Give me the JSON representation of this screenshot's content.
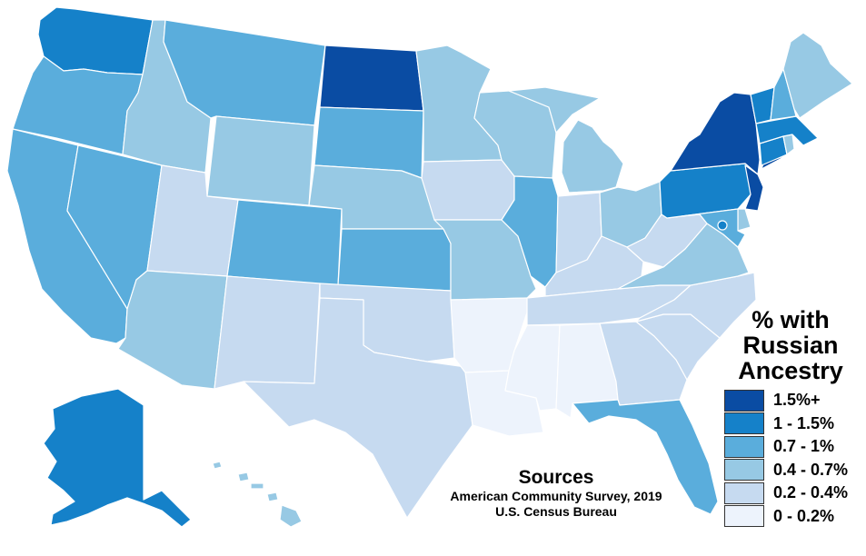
{
  "legend": {
    "title_lines": [
      "% with",
      "Russian",
      "Ancestry"
    ],
    "items": [
      {
        "label": "1.5%+",
        "color": "#0a4ca3"
      },
      {
        "label": "1 - 1.5%",
        "color": "#1581c9"
      },
      {
        "label": "0.7 - 1%",
        "color": "#5aaddc"
      },
      {
        "label": "0.4 - 0.7%",
        "color": "#97c9e4"
      },
      {
        "label": "0.2 - 0.4%",
        "color": "#c6daf0"
      },
      {
        "label": "0 - 0.2%",
        "color": "#edf3fc"
      }
    ]
  },
  "sources": {
    "title": "Sources",
    "lines": [
      "American Community Survey, 2019",
      "U.S. Census Bureau"
    ]
  },
  "states": [
    {
      "name": "WA",
      "category": "1 - 1.5%"
    },
    {
      "name": "OR",
      "category": "0.7 - 1%"
    },
    {
      "name": "CA",
      "category": "0.7 - 1%"
    },
    {
      "name": "NV",
      "category": "0.7 - 1%"
    },
    {
      "name": "ID",
      "category": "0.4 - 0.7%"
    },
    {
      "name": "MT",
      "category": "0.7 - 1%"
    },
    {
      "name": "WY",
      "category": "0.4 - 0.7%"
    },
    {
      "name": "UT",
      "category": "0.2 - 0.4%"
    },
    {
      "name": "AZ",
      "category": "0.4 - 0.7%"
    },
    {
      "name": "CO",
      "category": "0.7 - 1%"
    },
    {
      "name": "NM",
      "category": "0.2 - 0.4%"
    },
    {
      "name": "ND",
      "category": "1.5%+"
    },
    {
      "name": "SD",
      "category": "0.7 - 1%"
    },
    {
      "name": "NE",
      "category": "0.4 - 0.7%"
    },
    {
      "name": "KS",
      "category": "0.7 - 1%"
    },
    {
      "name": "OK",
      "category": "0.2 - 0.4%"
    },
    {
      "name": "TX",
      "category": "0.2 - 0.4%"
    },
    {
      "name": "MN",
      "category": "0.4 - 0.7%"
    },
    {
      "name": "IA",
      "category": "0.2 - 0.4%"
    },
    {
      "name": "MO",
      "category": "0.4 - 0.7%"
    },
    {
      "name": "AR",
      "category": "0 - 0.2%"
    },
    {
      "name": "LA",
      "category": "0 - 0.2%"
    },
    {
      "name": "WI",
      "category": "0.4 - 0.7%"
    },
    {
      "name": "IL",
      "category": "0.7 - 1%"
    },
    {
      "name": "MI",
      "category": "0.4 - 0.7%"
    },
    {
      "name": "IN",
      "category": "0.2 - 0.4%"
    },
    {
      "name": "OH",
      "category": "0.4 - 0.7%"
    },
    {
      "name": "KY",
      "category": "0.2 - 0.4%"
    },
    {
      "name": "TN",
      "category": "0.2 - 0.4%"
    },
    {
      "name": "MS",
      "category": "0 - 0.2%"
    },
    {
      "name": "AL",
      "category": "0 - 0.2%"
    },
    {
      "name": "GA",
      "category": "0.2 - 0.4%"
    },
    {
      "name": "FL",
      "category": "0.7 - 1%"
    },
    {
      "name": "SC",
      "category": "0.2 - 0.4%"
    },
    {
      "name": "NC",
      "category": "0.2 - 0.4%"
    },
    {
      "name": "VA",
      "category": "0.4 - 0.7%"
    },
    {
      "name": "WV",
      "category": "0.2 - 0.4%"
    },
    {
      "name": "PA",
      "category": "1 - 1.5%"
    },
    {
      "name": "NY",
      "category": "1.5%+"
    },
    {
      "name": "NJ",
      "category": "1.5%+"
    },
    {
      "name": "DE",
      "category": "0.4 - 0.7%"
    },
    {
      "name": "MD",
      "category": "0.7 - 1%"
    },
    {
      "name": "DC",
      "category": "1 - 1.5%"
    },
    {
      "name": "CT",
      "category": "1 - 1.5%"
    },
    {
      "name": "RI",
      "category": "0.4 - 0.7%"
    },
    {
      "name": "MA",
      "category": "1 - 1.5%"
    },
    {
      "name": "VT",
      "category": "1 - 1.5%"
    },
    {
      "name": "NH",
      "category": "0.7 - 1%"
    },
    {
      "name": "ME",
      "category": "0.4 - 0.7%"
    },
    {
      "name": "AK",
      "category": "1 - 1.5%"
    },
    {
      "name": "HI",
      "category": "0.4 - 0.7%"
    }
  ]
}
